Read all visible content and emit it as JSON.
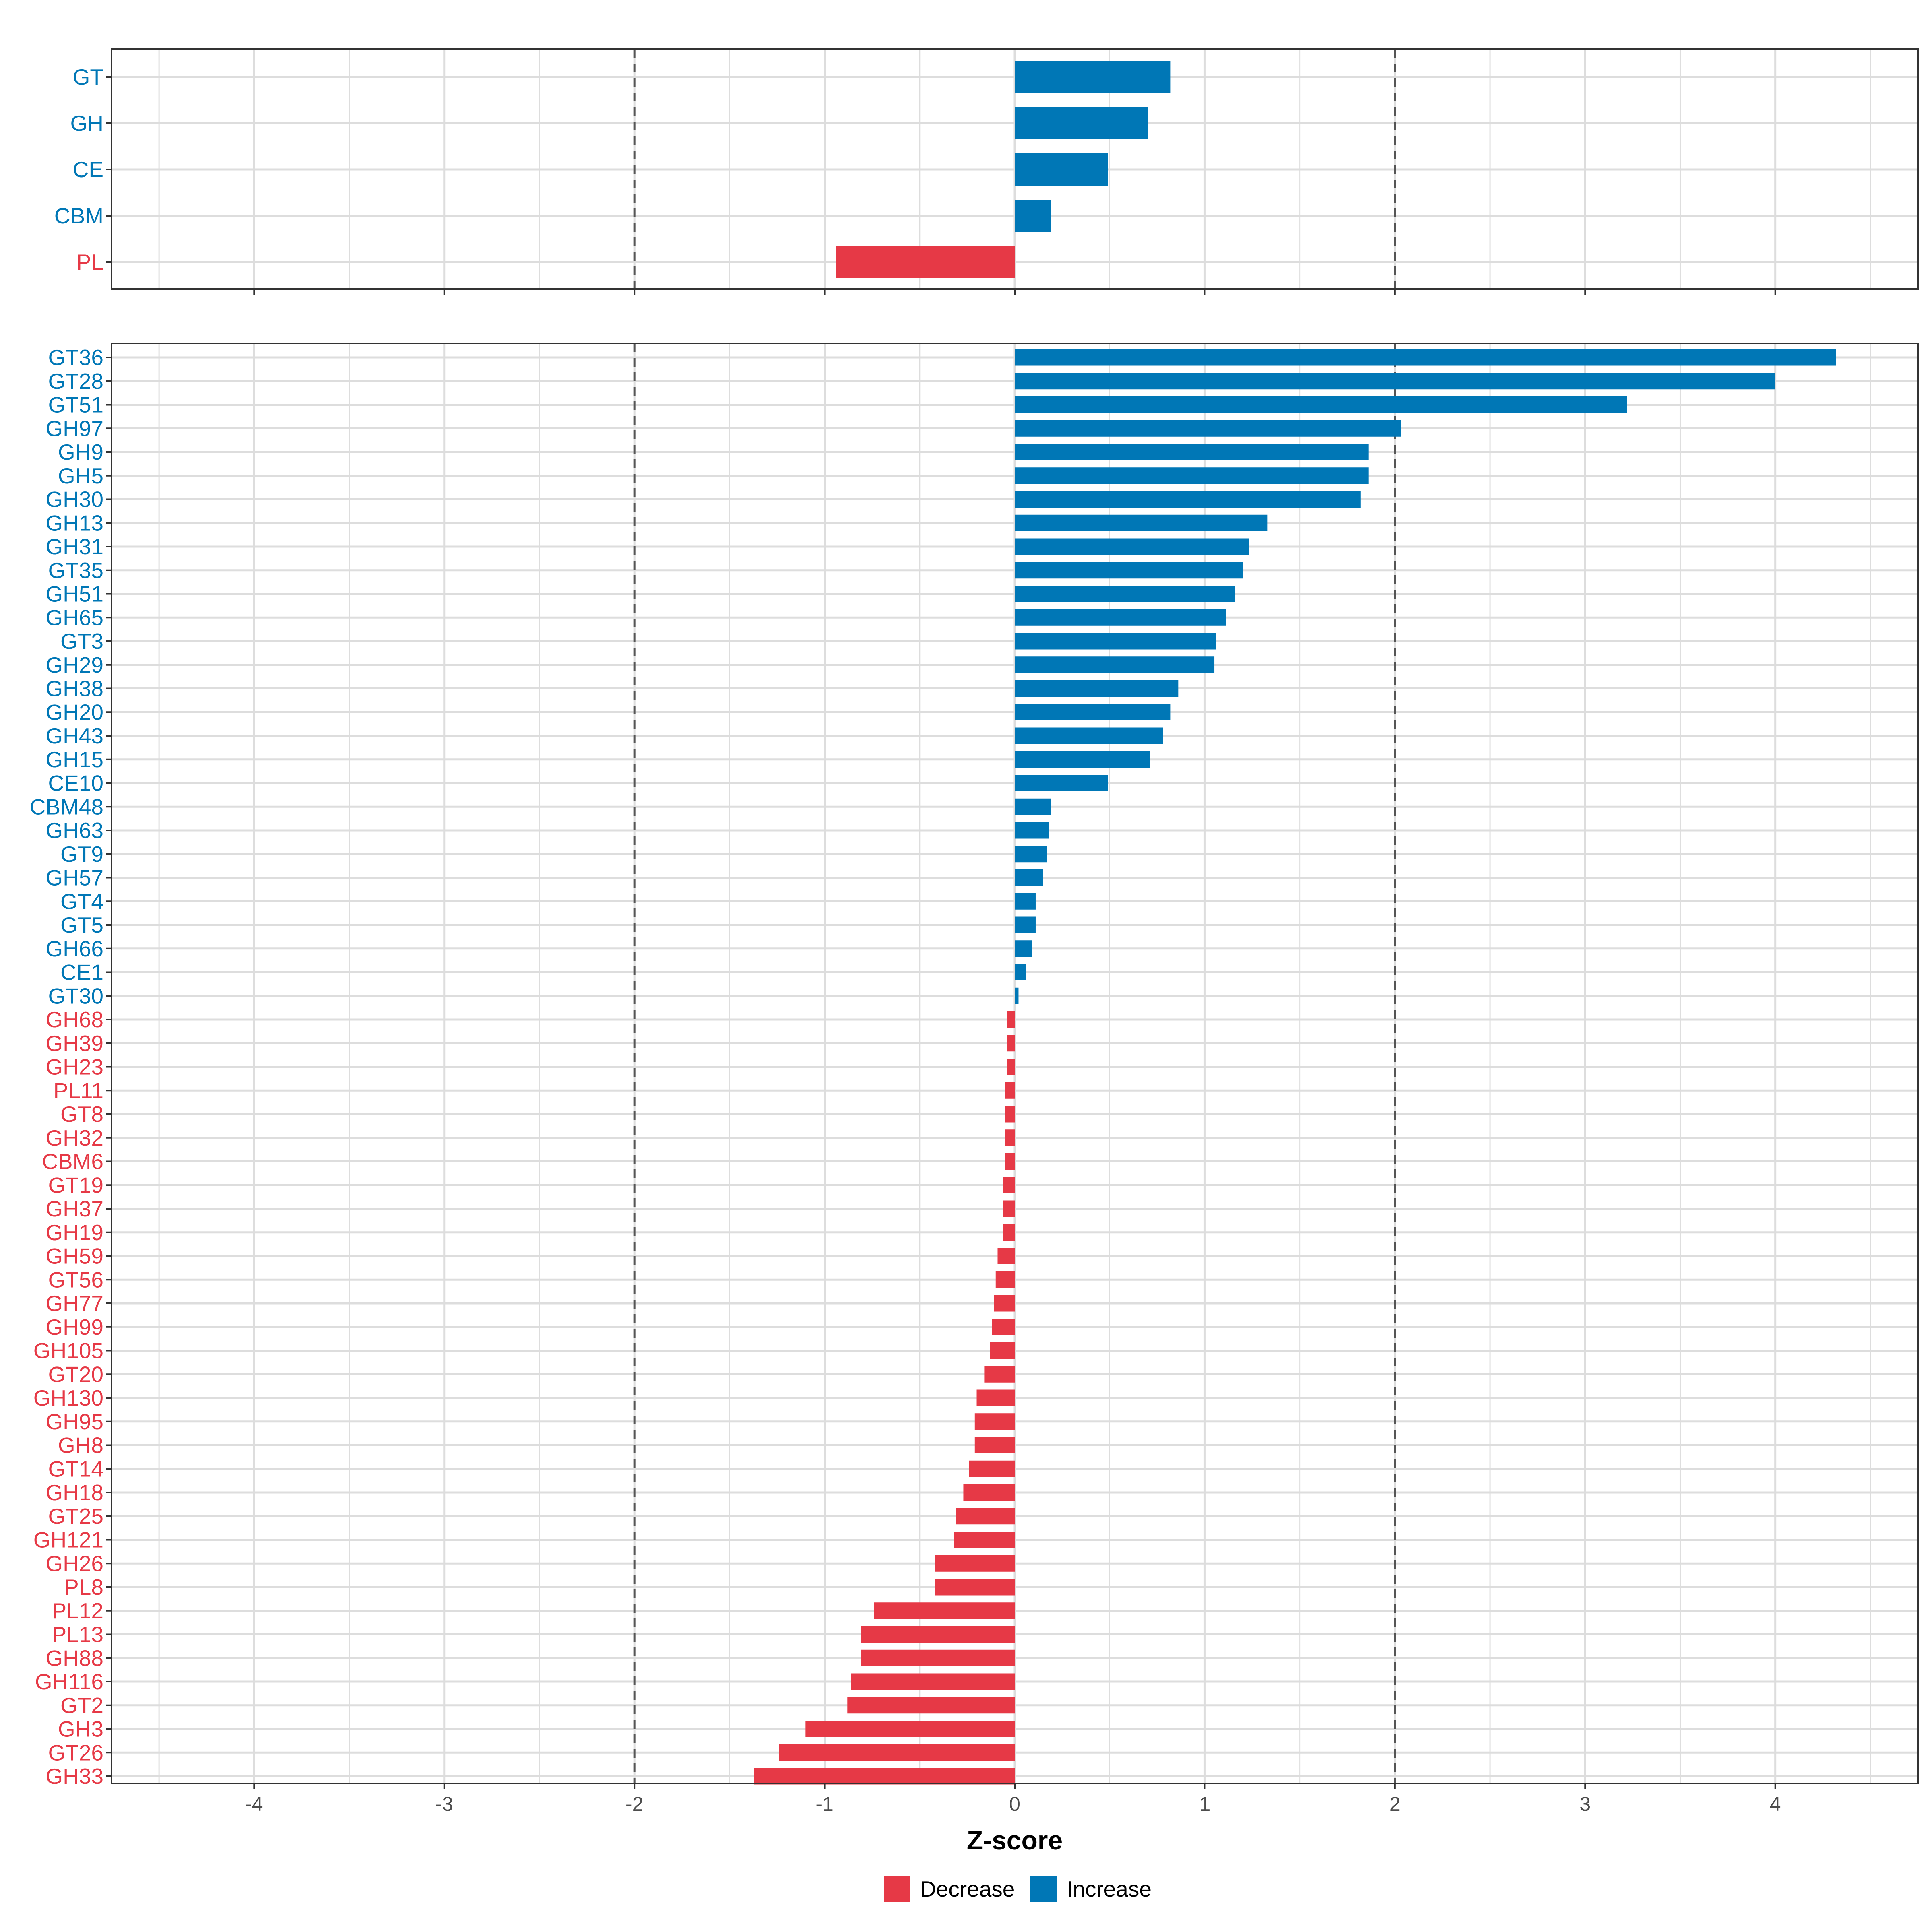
{
  "colors": {
    "decrease": "#E63946",
    "increase": "#0077B6",
    "grid": "#DDDDDD",
    "ref_line": "#555555",
    "frame": "#333333"
  },
  "chart_data": [
    {
      "type": "bar",
      "orientation": "horizontal",
      "panel": "top",
      "title": "",
      "xlabel": "Z-score",
      "xlim": [
        -4.75,
        4.75
      ],
      "x_ticks": [
        "-4",
        "-3",
        "-2",
        "-1",
        "0",
        "1",
        "2",
        "3",
        "4"
      ],
      "reference_lines": [
        -2,
        2
      ],
      "categories": [
        "GT",
        "GH",
        "CE",
        "CBM",
        "PL"
      ],
      "values": [
        0.82,
        0.7,
        0.49,
        0.19,
        -0.94
      ]
    },
    {
      "type": "bar",
      "orientation": "horizontal",
      "panel": "bottom",
      "title": "",
      "xlabel": "Z-score",
      "xlim": [
        -4.75,
        4.75
      ],
      "x_ticks": [
        "-4",
        "-3",
        "-2",
        "-1",
        "0",
        "1",
        "2",
        "3",
        "4"
      ],
      "reference_lines": [
        -2,
        2
      ],
      "categories": [
        "GT36",
        "GT28",
        "GT51",
        "GH97",
        "GH9",
        "GH5",
        "GH30",
        "GH13",
        "GH31",
        "GT35",
        "GH51",
        "GH65",
        "GT3",
        "GH29",
        "GH38",
        "GH20",
        "GH43",
        "GH15",
        "CE10",
        "CBM48",
        "GH63",
        "GT9",
        "GH57",
        "GT4",
        "GT5",
        "GH66",
        "CE1",
        "GT30",
        "GH68",
        "GH39",
        "GH23",
        "PL11",
        "GT8",
        "GH32",
        "CBM6",
        "GT19",
        "GH37",
        "GH19",
        "GH59",
        "GT56",
        "GH77",
        "GH99",
        "GH105",
        "GT20",
        "GH130",
        "GH95",
        "GH8",
        "GT14",
        "GH18",
        "GT25",
        "GH121",
        "GH26",
        "PL8",
        "PL12",
        "PL13",
        "GH88",
        "GH116",
        "GT2",
        "GH3",
        "GT26",
        "GH33"
      ],
      "values": [
        4.32,
        4.0,
        3.22,
        2.03,
        1.86,
        1.86,
        1.82,
        1.33,
        1.23,
        1.2,
        1.16,
        1.11,
        1.06,
        1.05,
        0.86,
        0.82,
        0.78,
        0.71,
        0.49,
        0.19,
        0.18,
        0.17,
        0.15,
        0.11,
        0.11,
        0.09,
        0.06,
        0.02,
        -0.04,
        -0.04,
        -0.04,
        -0.05,
        -0.05,
        -0.05,
        -0.05,
        -0.06,
        -0.06,
        -0.06,
        -0.09,
        -0.1,
        -0.11,
        -0.12,
        -0.13,
        -0.16,
        -0.2,
        -0.21,
        -0.21,
        -0.24,
        -0.27,
        -0.31,
        -0.32,
        -0.42,
        -0.42,
        -0.74,
        -0.81,
        -0.81,
        -0.86,
        -0.88,
        -1.1,
        -1.24,
        -1.37
      ]
    }
  ],
  "legend": {
    "items": [
      {
        "label": "Decrease",
        "key": "decrease"
      },
      {
        "label": "Increase",
        "key": "increase"
      }
    ]
  }
}
